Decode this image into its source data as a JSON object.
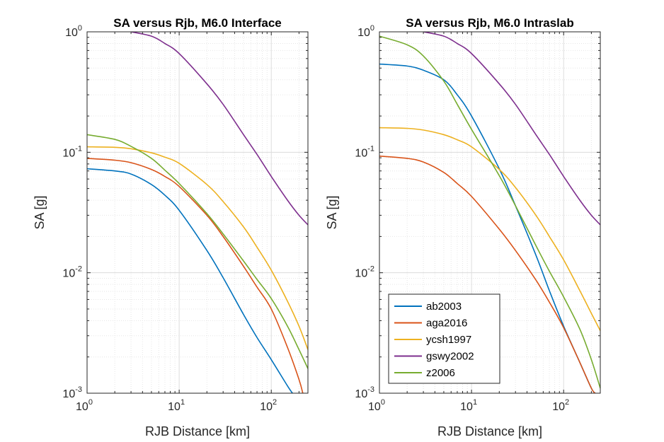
{
  "figure": {
    "background": "#ffffff"
  },
  "chart_data": [
    {
      "type": "line",
      "title": "SA versus Rjb, M6.0 Interface",
      "xlabel": "RJB Distance [km]",
      "ylabel": "SA [g]",
      "xscale": "log",
      "yscale": "log",
      "xlim": [
        1,
        250
      ],
      "ylim": [
        0.001,
        1
      ],
      "grid": "on (major and minor)",
      "legend": "none",
      "x_ticks": [
        {
          "base": "10",
          "exp": "0",
          "value": 1
        },
        {
          "base": "10",
          "exp": "1",
          "value": 10
        },
        {
          "base": "10",
          "exp": "2",
          "value": 100
        }
      ],
      "y_ticks": [
        {
          "base": "10",
          "exp": "-3",
          "value": 0.001
        },
        {
          "base": "10",
          "exp": "-2",
          "value": 0.01
        },
        {
          "base": "10",
          "exp": "-1",
          "value": 0.1
        },
        {
          "base": "10",
          "exp": "0",
          "value": 1
        }
      ],
      "series": [
        {
          "color": "#0072BD",
          "points": [
            [
              1,
              0.073
            ],
            [
              2,
              0.07
            ],
            [
              3,
              0.066
            ],
            [
              5,
              0.054
            ],
            [
              7,
              0.044
            ],
            [
              10,
              0.033
            ],
            [
              20,
              0.0153
            ],
            [
              30,
              0.0091
            ],
            [
              50,
              0.0045
            ],
            [
              70,
              0.0029
            ],
            [
              100,
              0.0019
            ],
            [
              150,
              0.00115
            ],
            [
              170,
              0.001
            ]
          ]
        },
        {
          "color": "#D95319",
          "points": [
            [
              1,
              0.089
            ],
            [
              2,
              0.086
            ],
            [
              3,
              0.082
            ],
            [
              5,
              0.072
            ],
            [
              7,
              0.063
            ],
            [
              10,
              0.052
            ],
            [
              20,
              0.03
            ],
            [
              30,
              0.02
            ],
            [
              50,
              0.0113
            ],
            [
              70,
              0.0076
            ],
            [
              100,
              0.005
            ],
            [
              150,
              0.0024
            ],
            [
              200,
              0.0013
            ],
            [
              220,
              0.001
            ]
          ]
        },
        {
          "color": "#EDB120",
          "points": [
            [
              1,
              0.111
            ],
            [
              2,
              0.11
            ],
            [
              3,
              0.107
            ],
            [
              5,
              0.099
            ],
            [
              7,
              0.091
            ],
            [
              10,
              0.081
            ],
            [
              20,
              0.054
            ],
            [
              30,
              0.039
            ],
            [
              50,
              0.024
            ],
            [
              70,
              0.0163
            ],
            [
              100,
              0.0105
            ],
            [
              150,
              0.0058
            ],
            [
              200,
              0.0036
            ],
            [
              250,
              0.0023
            ]
          ]
        },
        {
          "color": "#7E2F8E",
          "points": [
            [
              3,
              1.0
            ],
            [
              5,
              0.92
            ],
            [
              7,
              0.8
            ],
            [
              10,
              0.66
            ],
            [
              20,
              0.37
            ],
            [
              30,
              0.25
            ],
            [
              50,
              0.14
            ],
            [
              70,
              0.096
            ],
            [
              100,
              0.063
            ],
            [
              150,
              0.04
            ],
            [
              200,
              0.03
            ],
            [
              250,
              0.025
            ]
          ]
        },
        {
          "color": "#77AC30",
          "points": [
            [
              1,
              0.14
            ],
            [
              2,
              0.128
            ],
            [
              3,
              0.112
            ],
            [
              5,
              0.089
            ],
            [
              7,
              0.071
            ],
            [
              10,
              0.055
            ],
            [
              20,
              0.031
            ],
            [
              30,
              0.021
            ],
            [
              50,
              0.0125
            ],
            [
              70,
              0.0088
            ],
            [
              100,
              0.0061
            ],
            [
              150,
              0.0036
            ],
            [
              200,
              0.0023
            ],
            [
              250,
              0.0016
            ]
          ]
        }
      ]
    },
    {
      "type": "line",
      "title": "SA versus Rjb, M6.0 Intraslab",
      "xlabel": "RJB Distance [km]",
      "ylabel": "SA [g]",
      "xscale": "log",
      "yscale": "log",
      "xlim": [
        1,
        250
      ],
      "ylim": [
        0.001,
        1
      ],
      "grid": "on (major and minor)",
      "legend": "bottom-left",
      "x_ticks": [
        {
          "base": "10",
          "exp": "0",
          "value": 1
        },
        {
          "base": "10",
          "exp": "1",
          "value": 10
        },
        {
          "base": "10",
          "exp": "2",
          "value": 100
        }
      ],
      "y_ticks": [
        {
          "base": "10",
          "exp": "-3",
          "value": 0.001
        },
        {
          "base": "10",
          "exp": "-2",
          "value": 0.01
        },
        {
          "base": "10",
          "exp": "-1",
          "value": 0.1
        },
        {
          "base": "10",
          "exp": "0",
          "value": 1
        }
      ],
      "series": [
        {
          "name": "ab2003",
          "color": "#0072BD",
          "points": [
            [
              1,
              0.54
            ],
            [
              2,
              0.52
            ],
            [
              3,
              0.48
            ],
            [
              5,
              0.4
            ],
            [
              7,
              0.3
            ],
            [
              10,
              0.2
            ],
            [
              20,
              0.073
            ],
            [
              30,
              0.036
            ],
            [
              50,
              0.014
            ],
            [
              70,
              0.0071
            ],
            [
              100,
              0.0036
            ],
            [
              150,
              0.0018
            ],
            [
              200,
              0.0011
            ],
            [
              220,
              0.001
            ]
          ]
        },
        {
          "name": "aga2016",
          "color": "#D95319",
          "points": [
            [
              1,
              0.093
            ],
            [
              2,
              0.089
            ],
            [
              3,
              0.083
            ],
            [
              5,
              0.068
            ],
            [
              7,
              0.055
            ],
            [
              10,
              0.043
            ],
            [
              20,
              0.023
            ],
            [
              30,
              0.0153
            ],
            [
              50,
              0.0087
            ],
            [
              70,
              0.0057
            ],
            [
              100,
              0.0035
            ],
            [
              150,
              0.0018
            ],
            [
              200,
              0.0011
            ],
            [
              220,
              0.001
            ]
          ]
        },
        {
          "name": "ycsh1997",
          "color": "#EDB120",
          "points": [
            [
              1,
              0.16
            ],
            [
              2,
              0.158
            ],
            [
              3,
              0.153
            ],
            [
              5,
              0.14
            ],
            [
              7,
              0.127
            ],
            [
              10,
              0.111
            ],
            [
              20,
              0.072
            ],
            [
              30,
              0.051
            ],
            [
              50,
              0.03
            ],
            [
              70,
              0.02
            ],
            [
              100,
              0.0128
            ],
            [
              150,
              0.0071
            ],
            [
              200,
              0.0046
            ],
            [
              250,
              0.0033
            ]
          ]
        },
        {
          "name": "gswy2002",
          "color": "#7E2F8E",
          "points": [
            [
              3,
              1.0
            ],
            [
              5,
              0.92
            ],
            [
              7,
              0.8
            ],
            [
              10,
              0.66
            ],
            [
              20,
              0.37
            ],
            [
              30,
              0.25
            ],
            [
              50,
              0.14
            ],
            [
              70,
              0.096
            ],
            [
              100,
              0.063
            ],
            [
              150,
              0.04
            ],
            [
              200,
              0.03
            ],
            [
              250,
              0.025
            ]
          ]
        },
        {
          "name": "z2006",
          "color": "#77AC30",
          "points": [
            [
              1,
              0.92
            ],
            [
              2,
              0.78
            ],
            [
              3,
              0.63
            ],
            [
              5,
              0.39
            ],
            [
              7,
              0.25
            ],
            [
              10,
              0.155
            ],
            [
              20,
              0.064
            ],
            [
              30,
              0.036
            ],
            [
              50,
              0.0168
            ],
            [
              70,
              0.0103
            ],
            [
              100,
              0.0063
            ],
            [
              150,
              0.0034
            ],
            [
              200,
              0.0019
            ],
            [
              250,
              0.0011
            ]
          ]
        }
      ]
    }
  ]
}
